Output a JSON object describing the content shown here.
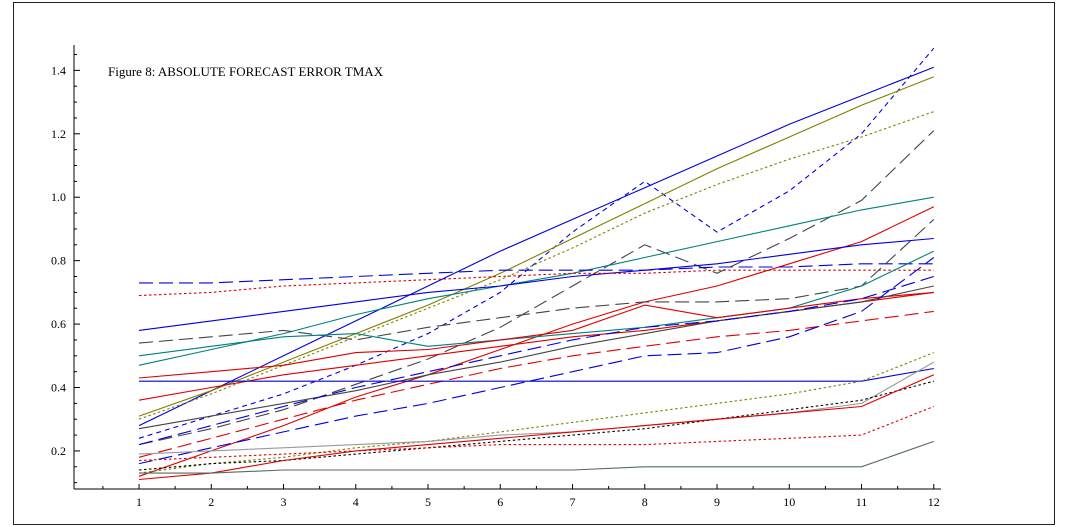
{
  "chart_data": {
    "type": "line",
    "title": "Figure 8: ABSOLUTE FORECAST ERROR TMAX",
    "xlabel": "",
    "ylabel": "",
    "x": [
      1,
      2,
      3,
      4,
      5,
      6,
      7,
      8,
      9,
      10,
      11,
      12
    ],
    "xlim": [
      0.1,
      12.1
    ],
    "ylim": [
      0.08,
      1.48
    ],
    "xticks": [
      "1",
      "2",
      "3",
      "4",
      "5",
      "6",
      "7",
      "8",
      "9",
      "10",
      "11",
      "12"
    ],
    "yticks": [
      "0.2",
      "0.4",
      "0.6",
      "0.8",
      "1.0",
      "1.2",
      "1.4"
    ],
    "ytick_values": [
      0.2,
      0.4,
      0.6,
      0.8,
      1.0,
      1.2,
      1.4
    ],
    "grid": false,
    "legend": "none",
    "series": [
      {
        "color": "#0000dd",
        "dash": "solid",
        "values": [
          0.28,
          0.39,
          0.5,
          0.61,
          0.72,
          0.83,
          0.93,
          1.03,
          1.13,
          1.23,
          1.32,
          1.41
        ]
      },
      {
        "color": "#0000dd",
        "dash": "short",
        "values": [
          0.24,
          0.31,
          0.38,
          0.47,
          0.57,
          0.7,
          0.89,
          1.05,
          0.89,
          1.02,
          1.2,
          1.47
        ]
      },
      {
        "color": "#808000",
        "dash": "solid",
        "values": [
          0.31,
          0.39,
          0.48,
          0.57,
          0.66,
          0.76,
          0.87,
          0.98,
          1.09,
          1.19,
          1.29,
          1.38
        ]
      },
      {
        "color": "#808000",
        "dash": "dot",
        "values": [
          0.3,
          0.38,
          0.47,
          0.56,
          0.65,
          0.74,
          0.84,
          0.95,
          1.04,
          1.12,
          1.19,
          1.27
        ]
      },
      {
        "color": "#444444",
        "dash": "long",
        "values": [
          0.22,
          0.27,
          0.33,
          0.41,
          0.49,
          0.59,
          0.72,
          0.85,
          0.76,
          0.87,
          0.99,
          1.21
        ]
      },
      {
        "color": "#008080",
        "dash": "solid",
        "values": [
          0.47,
          0.52,
          0.57,
          0.63,
          0.68,
          0.72,
          0.76,
          0.81,
          0.86,
          0.91,
          0.96,
          1.0
        ]
      },
      {
        "color": "#dd0000",
        "dash": "solid",
        "values": [
          0.12,
          0.2,
          0.28,
          0.37,
          0.44,
          0.52,
          0.6,
          0.67,
          0.72,
          0.79,
          0.86,
          0.97
        ]
      },
      {
        "color": "#0000dd",
        "dash": "solid",
        "values": [
          0.58,
          0.61,
          0.64,
          0.67,
          0.7,
          0.72,
          0.75,
          0.77,
          0.79,
          0.82,
          0.85,
          0.87
        ]
      },
      {
        "color": "#0000dd",
        "dash": "long",
        "values": [
          0.73,
          0.73,
          0.74,
          0.75,
          0.76,
          0.77,
          0.77,
          0.77,
          0.78,
          0.78,
          0.79,
          0.79
        ]
      },
      {
        "color": "#dd0000",
        "dash": "dot",
        "values": [
          0.69,
          0.7,
          0.72,
          0.73,
          0.74,
          0.75,
          0.76,
          0.76,
          0.77,
          0.77,
          0.77,
          0.77
        ]
      },
      {
        "color": "#444444",
        "dash": "long",
        "values": [
          0.54,
          0.56,
          0.58,
          0.55,
          0.59,
          0.62,
          0.65,
          0.67,
          0.67,
          0.68,
          0.72,
          0.93
        ]
      },
      {
        "color": "#008080",
        "dash": "solid",
        "values": [
          0.5,
          0.53,
          0.56,
          0.57,
          0.53,
          0.55,
          0.57,
          0.59,
          0.62,
          0.65,
          0.72,
          0.83
        ]
      },
      {
        "color": "#dd0000",
        "dash": "solid",
        "values": [
          0.43,
          0.45,
          0.47,
          0.51,
          0.52,
          0.55,
          0.58,
          0.66,
          0.62,
          0.65,
          0.68,
          0.7
        ]
      },
      {
        "color": "#dd0000",
        "dash": "solid",
        "values": [
          0.36,
          0.4,
          0.44,
          0.47,
          0.5,
          0.53,
          0.56,
          0.58,
          0.61,
          0.64,
          0.67,
          0.7
        ]
      },
      {
        "color": "#444444",
        "dash": "solid",
        "values": [
          0.27,
          0.31,
          0.35,
          0.39,
          0.44,
          0.48,
          0.53,
          0.57,
          0.61,
          0.64,
          0.67,
          0.72
        ]
      },
      {
        "color": "#0000dd",
        "dash": "long",
        "values": [
          0.22,
          0.28,
          0.34,
          0.4,
          0.45,
          0.5,
          0.55,
          0.59,
          0.61,
          0.64,
          0.68,
          0.75
        ]
      },
      {
        "color": "#dd0000",
        "dash": "long",
        "values": [
          0.18,
          0.24,
          0.3,
          0.36,
          0.41,
          0.46,
          0.5,
          0.53,
          0.56,
          0.58,
          0.61,
          0.64
        ]
      },
      {
        "color": "#0000dd",
        "dash": "long",
        "values": [
          0.16,
          0.21,
          0.26,
          0.31,
          0.35,
          0.4,
          0.45,
          0.5,
          0.51,
          0.56,
          0.64,
          0.81
        ]
      },
      {
        "color": "#0000dd",
        "dash": "solid",
        "values": [
          0.42,
          0.42,
          0.42,
          0.42,
          0.42,
          0.42,
          0.42,
          0.42,
          0.42,
          0.42,
          0.42,
          0.46
        ]
      },
      {
        "color": "#808000",
        "dash": "dot",
        "values": [
          0.13,
          0.16,
          0.18,
          0.21,
          0.23,
          0.26,
          0.29,
          0.32,
          0.35,
          0.38,
          0.42,
          0.51
        ]
      },
      {
        "color": "#999999",
        "dash": "solid",
        "values": [
          0.19,
          0.2,
          0.21,
          0.22,
          0.23,
          0.25,
          0.26,
          0.28,
          0.3,
          0.32,
          0.35,
          0.48
        ]
      },
      {
        "color": "#000000",
        "dash": "dot",
        "values": [
          0.14,
          0.16,
          0.17,
          0.19,
          0.21,
          0.23,
          0.25,
          0.27,
          0.3,
          0.33,
          0.36,
          0.42
        ]
      },
      {
        "color": "#dd0000",
        "dash": "solid",
        "values": [
          0.11,
          0.13,
          0.17,
          0.2,
          0.22,
          0.24,
          0.26,
          0.28,
          0.3,
          0.32,
          0.34,
          0.44
        ]
      },
      {
        "color": "#dd0000",
        "dash": "dot",
        "values": [
          0.17,
          0.18,
          0.19,
          0.2,
          0.21,
          0.22,
          0.22,
          0.22,
          0.23,
          0.24,
          0.25,
          0.34
        ]
      },
      {
        "color": "#556b5f",
        "dash": "solid",
        "values": [
          0.13,
          0.13,
          0.14,
          0.14,
          0.14,
          0.14,
          0.14,
          0.15,
          0.15,
          0.15,
          0.15,
          0.23
        ]
      }
    ]
  }
}
